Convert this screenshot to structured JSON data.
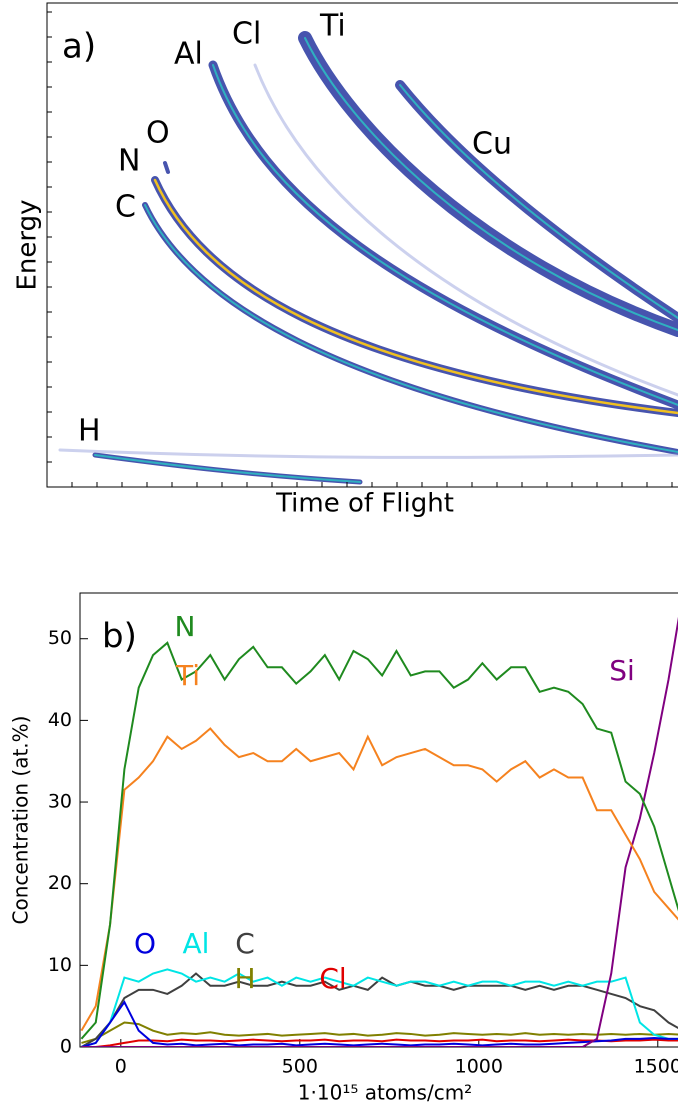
{
  "chart_data": [
    {
      "type": "tof-e-map",
      "title": "a)",
      "xlabel": "Time of Flight",
      "ylabel": "Energy",
      "annotations": [
        "H",
        "C",
        "N",
        "O",
        "Al",
        "Cl",
        "Ti",
        "Cu"
      ]
    },
    {
      "type": "line",
      "title": "b)",
      "xlabel": "1·10¹⁵ atoms/cm²",
      "ylabel": "Concentration (at.%)",
      "x": [
        -110,
        -70,
        -30,
        10,
        50,
        90,
        130,
        170,
        210,
        250,
        290,
        330,
        370,
        410,
        450,
        490,
        530,
        570,
        610,
        650,
        690,
        730,
        770,
        810,
        850,
        890,
        930,
        970,
        1010,
        1050,
        1090,
        1130,
        1170,
        1210,
        1250,
        1290,
        1330,
        1370,
        1410,
        1450,
        1490,
        1530,
        1570
      ],
      "xlim": [
        -114,
        1590
      ],
      "ylim": [
        0,
        55.6
      ],
      "xticks": [
        0,
        500,
        1000,
        1500
      ],
      "yticks": [
        0,
        10,
        20,
        30,
        40,
        50
      ],
      "series": [
        {
          "name": "N",
          "color": "#1f8a1f",
          "values": [
            1,
            3,
            15,
            34,
            44,
            48,
            49.5,
            45,
            46,
            48,
            45,
            47.5,
            49,
            46.5,
            46.5,
            44.5,
            46,
            48,
            45,
            48.5,
            47.5,
            45.5,
            48.5,
            45.5,
            46,
            46,
            44,
            45,
            47,
            45,
            46.5,
            46.5,
            43.5,
            44,
            43.5,
            42,
            39,
            38.5,
            32.5,
            31,
            27,
            21,
            15
          ]
        },
        {
          "name": "Ti",
          "color": "#f5821f",
          "values": [
            2,
            5,
            15,
            31.5,
            33,
            35,
            38,
            36.5,
            37.5,
            39,
            37,
            35.5,
            36,
            35,
            35,
            36.5,
            35,
            35.5,
            36,
            34,
            38,
            34.5,
            35.5,
            36,
            36.5,
            35.5,
            34.5,
            34.5,
            34,
            32.5,
            34,
            35,
            33,
            34,
            33,
            33,
            29,
            29,
            26,
            23,
            19,
            17,
            15
          ]
        },
        {
          "name": "Si",
          "color": "#800080",
          "values": [
            0,
            0,
            0,
            0,
            0,
            0,
            0,
            0,
            0,
            0,
            0,
            0,
            0,
            0,
            0,
            0,
            0,
            0,
            0,
            0,
            0,
            0,
            0,
            0,
            0,
            0,
            0,
            0,
            0,
            0,
            0,
            0,
            0,
            0,
            0,
            0,
            1,
            9,
            22,
            28,
            36,
            45,
            55.5
          ]
        },
        {
          "name": "O",
          "color": "#0000dd",
          "values": [
            0,
            0.5,
            3,
            5.5,
            2,
            0.5,
            0.3,
            0.4,
            0.2,
            0.3,
            0.4,
            0.2,
            0.3,
            0.3,
            0.4,
            0.2,
            0.3,
            0.4,
            0.3,
            0.2,
            0.3,
            0.4,
            0.3,
            0.2,
            0.3,
            0.3,
            0.4,
            0.3,
            0.2,
            0.3,
            0.4,
            0.3,
            0.3,
            0.4,
            0.5,
            0.6,
            0.7,
            0.8,
            1,
            1,
            1.1,
            1,
            1
          ]
        },
        {
          "name": "Al",
          "color": "#00e5e5",
          "values": [
            0,
            0.5,
            3,
            8.5,
            8,
            9,
            9.5,
            9,
            8,
            8.5,
            8,
            9,
            8,
            8.5,
            7.5,
            8.5,
            8,
            8.5,
            8,
            7.5,
            8.5,
            8,
            7.5,
            8,
            8,
            7.5,
            8,
            7.5,
            8,
            8,
            7.5,
            8,
            8,
            7.5,
            8,
            7.5,
            8,
            8,
            8.5,
            3,
            1.5,
            1,
            1
          ]
        },
        {
          "name": "C",
          "color": "#404040",
          "values": [
            0,
            1,
            3,
            6,
            7,
            7,
            6.5,
            7.5,
            9,
            7.5,
            7.5,
            8,
            7.5,
            7.5,
            8,
            7.5,
            7.5,
            8,
            7,
            7.5,
            7,
            8.5,
            7.5,
            8,
            7.5,
            7.5,
            7,
            7.5,
            7.5,
            7.5,
            7.5,
            7,
            7.5,
            7,
            7.5,
            7.5,
            7,
            6.5,
            6,
            5,
            4.5,
            3,
            2
          ]
        },
        {
          "name": "H",
          "color": "#808000",
          "values": [
            0.5,
            1,
            2,
            3,
            2.8,
            2,
            1.5,
            1.7,
            1.6,
            1.8,
            1.5,
            1.4,
            1.5,
            1.6,
            1.4,
            1.5,
            1.6,
            1.7,
            1.5,
            1.6,
            1.4,
            1.5,
            1.7,
            1.6,
            1.4,
            1.5,
            1.7,
            1.6,
            1.5,
            1.6,
            1.5,
            1.7,
            1.5,
            1.6,
            1.5,
            1.6,
            1.5,
            1.6,
            1.5,
            1.6,
            1.5,
            1.6,
            1.5
          ]
        },
        {
          "name": "Cl",
          "color": "#e00000",
          "values": [
            0,
            0,
            0.2,
            0.5,
            0.8,
            0.8,
            0.7,
            0.9,
            0.8,
            0.8,
            0.7,
            0.8,
            0.9,
            0.8,
            0.7,
            0.8,
            0.8,
            0.9,
            0.7,
            0.8,
            0.8,
            0.7,
            0.9,
            0.8,
            0.8,
            0.7,
            0.8,
            0.8,
            0.9,
            0.7,
            0.8,
            0.8,
            0.7,
            0.8,
            0.9,
            0.8,
            0.8,
            0.7,
            0.8,
            0.8,
            0.9,
            0.8,
            0.8
          ]
        }
      ]
    }
  ]
}
